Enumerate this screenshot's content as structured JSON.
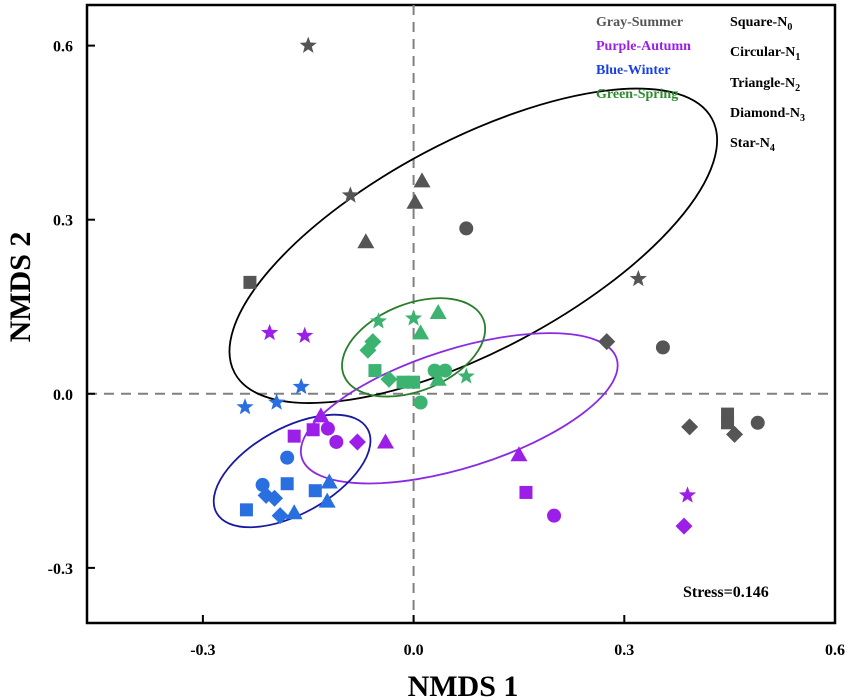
{
  "chart_data": {
    "type": "scatter",
    "title": "",
    "xlabel": "NMDS 1",
    "ylabel": "NMDS 2",
    "xlim": [
      -0.465,
      0.6
    ],
    "ylim": [
      -0.395,
      0.67
    ],
    "xticks": [
      -0.3,
      0,
      0.3,
      0.6
    ],
    "xtick_labels": [
      "-0.3",
      "0.0",
      "0.3",
      "0.6"
    ],
    "yticks": [
      -0.3,
      0,
      0.3,
      0.6
    ],
    "ytick_labels": [
      "-0.3",
      "0.0",
      "0.3",
      "0.6"
    ],
    "reference_lines": {
      "x": 0,
      "y": 0,
      "style": "dashed",
      "color": "#808080"
    },
    "annotation": "Stress=0.146",
    "legend": {
      "position": "top-right",
      "colors": [
        {
          "label": "Gray-Summer",
          "color": "#555555"
        },
        {
          "label": "Purple-Autumn",
          "color": "#9b1fe8"
        },
        {
          "label": "Blue-Winter",
          "color": "#1a40e0"
        },
        {
          "label": "Green-Spring",
          "color": "#2e8b2e"
        }
      ],
      "shapes": [
        {
          "base": "Square-N",
          "sub": "0"
        },
        {
          "base": "Circular-N",
          "sub": "1"
        },
        {
          "base": "Triangle-N",
          "sub": "2"
        },
        {
          "base": "Diamond-N",
          "sub": "3"
        },
        {
          "base": "Star-N",
          "sub": "4"
        }
      ]
    },
    "series": [
      {
        "name": "Summer",
        "color": "#555555",
        "ellipse_color": "#000000",
        "ellipse": {
          "cx": 0.085,
          "cy": 0.255,
          "rx": 0.385,
          "ry": 0.181,
          "angle_deg": -28
        },
        "points": [
          {
            "x": -0.15,
            "y": 0.6,
            "shape": "star"
          },
          {
            "x": -0.09,
            "y": 0.342,
            "shape": "star"
          },
          {
            "x": 0.32,
            "y": 0.198,
            "shape": "star"
          },
          {
            "x": 0.012,
            "y": 0.367,
            "shape": "triangle"
          },
          {
            "x": 0.002,
            "y": 0.33,
            "shape": "triangle"
          },
          {
            "x": -0.068,
            "y": 0.262,
            "shape": "triangle"
          },
          {
            "x": 0.075,
            "y": 0.285,
            "shape": "circle"
          },
          {
            "x": 0.355,
            "y": 0.08,
            "shape": "circle"
          },
          {
            "x": 0.49,
            "y": -0.05,
            "shape": "circle"
          },
          {
            "x": -0.233,
            "y": 0.192,
            "shape": "square"
          },
          {
            "x": 0.447,
            "y": -0.035,
            "shape": "square"
          },
          {
            "x": 0.447,
            "y": -0.05,
            "shape": "square"
          },
          {
            "x": 0.275,
            "y": 0.09,
            "shape": "diamond"
          },
          {
            "x": 0.393,
            "y": -0.057,
            "shape": "diamond"
          },
          {
            "x": 0.457,
            "y": -0.07,
            "shape": "diamond"
          }
        ]
      },
      {
        "name": "Autumn",
        "color": "#9b1fe8",
        "ellipse_color": "#8a2be2",
        "ellipse": {
          "cx": 0.065,
          "cy": -0.025,
          "rx": 0.235,
          "ry": 0.102,
          "angle_deg": -17.5
        },
        "points": [
          {
            "x": -0.205,
            "y": 0.105,
            "shape": "star"
          },
          {
            "x": -0.155,
            "y": 0.1,
            "shape": "star"
          },
          {
            "x": 0.39,
            "y": -0.175,
            "shape": "star"
          },
          {
            "x": -0.143,
            "y": -0.062,
            "shape": "square"
          },
          {
            "x": -0.17,
            "y": -0.073,
            "shape": "square"
          },
          {
            "x": 0.16,
            "y": -0.17,
            "shape": "square"
          },
          {
            "x": -0.132,
            "y": -0.038,
            "shape": "triangle"
          },
          {
            "x": -0.04,
            "y": -0.083,
            "shape": "triangle"
          },
          {
            "x": 0.15,
            "y": -0.105,
            "shape": "triangle"
          },
          {
            "x": -0.122,
            "y": -0.06,
            "shape": "circle"
          },
          {
            "x": -0.11,
            "y": -0.083,
            "shape": "circle"
          },
          {
            "x": 0.2,
            "y": -0.21,
            "shape": "circle"
          },
          {
            "x": -0.08,
            "y": -0.083,
            "shape": "diamond"
          },
          {
            "x": 0.385,
            "y": -0.228,
            "shape": "diamond"
          }
        ]
      },
      {
        "name": "Winter",
        "color": "#2a6fe0",
        "ellipse_color": "#1a1aa0",
        "ellipse": {
          "cx": -0.173,
          "cy": -0.133,
          "rx": 0.123,
          "ry": 0.074,
          "angle_deg": -29
        },
        "points": [
          {
            "x": -0.24,
            "y": -0.023,
            "shape": "star"
          },
          {
            "x": -0.195,
            "y": -0.015,
            "shape": "star"
          },
          {
            "x": -0.16,
            "y": 0.012,
            "shape": "star"
          },
          {
            "x": -0.18,
            "y": -0.11,
            "shape": "circle"
          },
          {
            "x": -0.215,
            "y": -0.157,
            "shape": "circle"
          },
          {
            "x": -0.18,
            "y": -0.155,
            "shape": "square"
          },
          {
            "x": -0.14,
            "y": -0.167,
            "shape": "square"
          },
          {
            "x": -0.238,
            "y": -0.2,
            "shape": "square"
          },
          {
            "x": -0.21,
            "y": -0.175,
            "shape": "diamond"
          },
          {
            "x": -0.198,
            "y": -0.18,
            "shape": "diamond"
          },
          {
            "x": -0.19,
            "y": -0.21,
            "shape": "diamond"
          },
          {
            "x": -0.12,
            "y": -0.152,
            "shape": "triangle"
          },
          {
            "x": -0.123,
            "y": -0.185,
            "shape": "triangle"
          },
          {
            "x": -0.17,
            "y": -0.205,
            "shape": "triangle"
          }
        ]
      },
      {
        "name": "Spring",
        "color": "#3cb371",
        "ellipse_color": "#2a7d2a",
        "ellipse": {
          "cx": 0.0,
          "cy": 0.08,
          "rx": 0.107,
          "ry": 0.075,
          "angle_deg": -22
        },
        "points": [
          {
            "x": -0.05,
            "y": 0.125,
            "shape": "star"
          },
          {
            "x": 0.0,
            "y": 0.13,
            "shape": "star"
          },
          {
            "x": 0.075,
            "y": 0.03,
            "shape": "star"
          },
          {
            "x": 0.035,
            "y": 0.14,
            "shape": "triangle"
          },
          {
            "x": 0.01,
            "y": 0.105,
            "shape": "triangle"
          },
          {
            "x": 0.035,
            "y": 0.025,
            "shape": "triangle"
          },
          {
            "x": -0.058,
            "y": 0.09,
            "shape": "diamond"
          },
          {
            "x": -0.065,
            "y": 0.075,
            "shape": "diamond"
          },
          {
            "x": -0.035,
            "y": 0.025,
            "shape": "diamond"
          },
          {
            "x": -0.055,
            "y": 0.04,
            "shape": "square"
          },
          {
            "x": -0.015,
            "y": 0.02,
            "shape": "square"
          },
          {
            "x": 0.0,
            "y": 0.02,
            "shape": "square"
          },
          {
            "x": 0.03,
            "y": 0.04,
            "shape": "circle"
          },
          {
            "x": 0.045,
            "y": 0.04,
            "shape": "circle"
          },
          {
            "x": 0.01,
            "y": -0.015,
            "shape": "circle"
          }
        ]
      }
    ]
  }
}
